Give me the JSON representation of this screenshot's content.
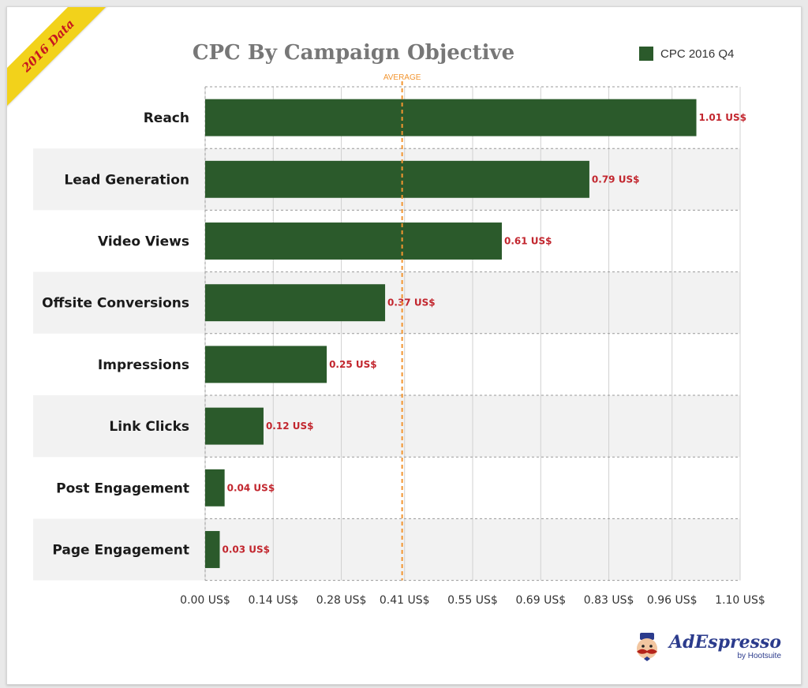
{
  "ribbon": {
    "text": "2016 Data"
  },
  "legend": {
    "label": "CPC 2016 Q4",
    "color": "#2b5a2b"
  },
  "logo": {
    "name": "AdEspresso",
    "sub": "by Hootsuite",
    "icon": "mustache-mascot-icon"
  },
  "chart_data": {
    "type": "bar",
    "orientation": "horizontal",
    "title": "CPC By Campaign Objective",
    "categories": [
      "Reach",
      "Lead Generation",
      "Video Views",
      "Offsite Conversions",
      "Impressions",
      "Link Clicks",
      "Post Engagement",
      "Page Engagement"
    ],
    "series": [
      {
        "name": "CPC 2016 Q4",
        "values": [
          1.01,
          0.79,
          0.61,
          0.37,
          0.25,
          0.12,
          0.04,
          0.03
        ],
        "labels": [
          "1.01 US$",
          "0.79 US$",
          "0.61 US$",
          "0.37 US$",
          "0.25 US$",
          "0.12 US$",
          "0.04 US$",
          "0.03 US$"
        ],
        "color": "#2b5a2b"
      }
    ],
    "xlim": [
      0,
      1.1
    ],
    "xticks": [
      0,
      0.14,
      0.28,
      0.41,
      0.55,
      0.69,
      0.83,
      0.96,
      1.1
    ],
    "xtick_labels": [
      "0.00 US$",
      "0.14 US$",
      "0.28 US$",
      "0.41 US$",
      "0.55 US$",
      "0.69 US$",
      "0.83 US$",
      "0.96 US$",
      "1.10 US$"
    ],
    "reference_line": {
      "label": "AVERAGE",
      "value": 0.405,
      "color": "#f29530"
    },
    "grid": true,
    "legend_position": "top-right",
    "colors": {
      "label": "#c2262e",
      "band": "#f2f2f2"
    }
  }
}
